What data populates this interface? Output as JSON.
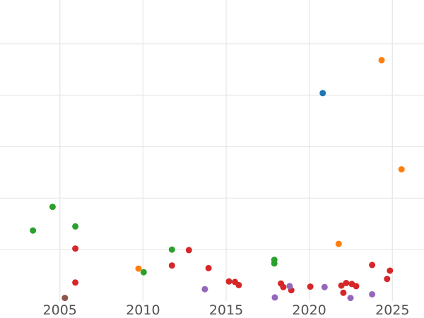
{
  "chart_data": {
    "type": "scatter",
    "title": "",
    "xlabel": "",
    "ylabel": "",
    "grid": true,
    "legend_position": "none",
    "xlim": [
      2001.4,
      2026.9
    ],
    "ylim": [
      -0.33,
      5.85
    ],
    "x_ticks": [
      2005,
      2010,
      2015,
      2020,
      2025
    ],
    "x_tick_labels": [
      "2005",
      "2010",
      "2015",
      "2020",
      "2025"
    ],
    "y_gridline_values": [
      1,
      2,
      3,
      4,
      5
    ],
    "marker_radius_px": 4.5,
    "series": [
      {
        "name": "blue",
        "color": "#1f77b4",
        "points": [
          {
            "x": 2020.81,
            "y": 4.04
          }
        ]
      },
      {
        "name": "orange",
        "color": "#ff7f0e",
        "points": [
          {
            "x": 2009.73,
            "y": 0.63
          },
          {
            "x": 2021.77,
            "y": 1.11
          },
          {
            "x": 2024.35,
            "y": 4.68
          },
          {
            "x": 2025.55,
            "y": 2.56
          }
        ]
      },
      {
        "name": "green",
        "color": "#2ca02c",
        "points": [
          {
            "x": 2003.38,
            "y": 1.37
          },
          {
            "x": 2004.56,
            "y": 1.83
          },
          {
            "x": 2005.93,
            "y": 1.45
          },
          {
            "x": 2010.04,
            "y": 0.56
          },
          {
            "x": 2011.74,
            "y": 1.0
          },
          {
            "x": 2017.9,
            "y": 0.8
          },
          {
            "x": 2017.9,
            "y": 0.73
          }
        ]
      },
      {
        "name": "red",
        "color": "#d62728",
        "points": [
          {
            "x": 2005.93,
            "y": 1.02
          },
          {
            "x": 2005.93,
            "y": 0.36
          },
          {
            "x": 2011.74,
            "y": 0.69
          },
          {
            "x": 2012.76,
            "y": 0.99
          },
          {
            "x": 2013.94,
            "y": 0.64
          },
          {
            "x": 2015.17,
            "y": 0.38
          },
          {
            "x": 2015.53,
            "y": 0.37
          },
          {
            "x": 2015.76,
            "y": 0.31
          },
          {
            "x": 2018.3,
            "y": 0.34
          },
          {
            "x": 2018.44,
            "y": 0.27
          },
          {
            "x": 2018.92,
            "y": 0.21
          },
          {
            "x": 2020.06,
            "y": 0.28
          },
          {
            "x": 2021.93,
            "y": 0.3
          },
          {
            "x": 2022.05,
            "y": 0.16
          },
          {
            "x": 2022.22,
            "y": 0.35
          },
          {
            "x": 2022.56,
            "y": 0.33
          },
          {
            "x": 2022.82,
            "y": 0.29
          },
          {
            "x": 2023.78,
            "y": 0.7
          },
          {
            "x": 2024.68,
            "y": 0.43
          },
          {
            "x": 2024.85,
            "y": 0.59
          }
        ]
      },
      {
        "name": "purple",
        "color": "#9467bd",
        "points": [
          {
            "x": 2013.72,
            "y": 0.23
          },
          {
            "x": 2017.93,
            "y": 0.07
          },
          {
            "x": 2018.82,
            "y": 0.29
          },
          {
            "x": 2020.92,
            "y": 0.27
          },
          {
            "x": 2022.48,
            "y": 0.06
          },
          {
            "x": 2023.78,
            "y": 0.13
          }
        ]
      },
      {
        "name": "brown",
        "color": "#8c564b",
        "points": [
          {
            "x": 2005.3,
            "y": 0.06
          }
        ]
      }
    ]
  },
  "style": {
    "background_color": "#ffffff",
    "gridline_color": "#e8e8e8",
    "gridline_width": 1.3,
    "tick_label_color": "#525252",
    "tick_font_size_px": 19
  }
}
